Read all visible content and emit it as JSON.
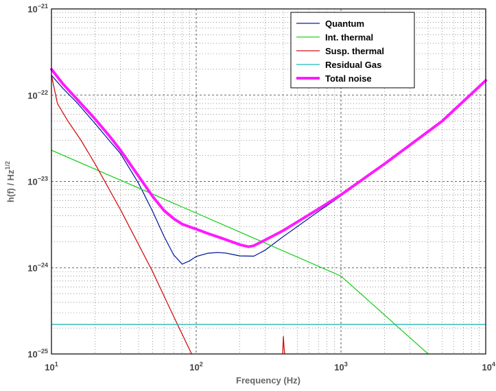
{
  "chart_data": {
    "type": "line",
    "title": "",
    "xlabel": "Frequency (Hz)",
    "ylabel_base": "h(f) / Hz",
    "ylabel_exp": "1/2",
    "xscale": "log",
    "yscale": "log",
    "xlim": [
      10,
      10000
    ],
    "ylim": [
      1e-25,
      1e-21
    ],
    "x_ticks": [
      {
        "base": "10",
        "exp": "1"
      },
      {
        "base": "10",
        "exp": "2"
      },
      {
        "base": "10",
        "exp": "3"
      },
      {
        "base": "10",
        "exp": "4"
      }
    ],
    "y_ticks": [
      {
        "base": "10",
        "exp": "−25"
      },
      {
        "base": "10",
        "exp": "−24"
      },
      {
        "base": "10",
        "exp": "−23"
      },
      {
        "base": "10",
        "exp": "−22"
      },
      {
        "base": "10",
        "exp": "−21"
      }
    ],
    "grid": true,
    "legend_position": "top-right",
    "series": [
      {
        "name": "Quantum",
        "color": "#0a1f9e",
        "x": [
          10,
          12,
          15,
          20,
          25,
          30,
          40,
          50,
          60,
          70,
          80,
          90,
          100,
          120,
          140,
          160,
          200,
          250,
          300,
          400,
          500,
          700,
          1000,
          2000,
          5000,
          10000
        ],
        "y": [
          1.7e-22,
          1.2e-22,
          8.2e-23,
          4.7e-23,
          3e-23,
          2.1e-23,
          9.5e-24,
          4.5e-24,
          2.3e-24,
          1.4e-24,
          1.1e-24,
          1.2e-24,
          1.35e-24,
          1.47e-24,
          1.5e-24,
          1.48e-24,
          1.37e-24,
          1.36e-24,
          1.6e-24,
          2.3e-24,
          3e-24,
          4.5e-24,
          6.8e-24,
          1.6e-23,
          5e-23,
          1.48e-22
        ]
      },
      {
        "name": "Int. thermal",
        "color": "#22d022",
        "x": [
          10,
          100,
          1000,
          4000
        ],
        "y": [
          2.3e-23,
          4.3e-24,
          8e-25,
          1e-25
        ]
      },
      {
        "name": "Susp. thermal",
        "color": "#d21010",
        "x": [
          10,
          11,
          13,
          16,
          20,
          30,
          50,
          70,
          93
        ],
        "y": [
          1.7e-22,
          8e-23,
          5e-23,
          3e-23,
          1.6e-23,
          4.7e-24,
          9e-25,
          2.7e-25,
          1e-25
        ]
      },
      {
        "name": "Residual Gas",
        "color": "#22b8b8",
        "x": [
          10,
          10000
        ],
        "y": [
          2.2e-25,
          2.2e-25
        ]
      },
      {
        "name": "Total noise",
        "color": "#ff1aff",
        "x": [
          10,
          12,
          15,
          20,
          25,
          30,
          40,
          50,
          60,
          70,
          80,
          100,
          120,
          150,
          200,
          230,
          250,
          300,
          400,
          500,
          700,
          1000,
          2000,
          5000,
          10000
        ],
        "y": [
          2e-22,
          1.35e-22,
          9e-23,
          5.3e-23,
          3.4e-23,
          2.3e-23,
          1.15e-23,
          6.7e-24,
          4.6e-24,
          3.7e-24,
          3.2e-24,
          2.8e-24,
          2.5e-24,
          2.2e-24,
          1.85e-24,
          1.75e-24,
          1.8e-24,
          2.1e-24,
          2.7e-24,
          3.4e-24,
          4.8e-24,
          7e-24,
          1.6e-23,
          5e-23,
          1.48e-22
        ]
      }
    ]
  }
}
